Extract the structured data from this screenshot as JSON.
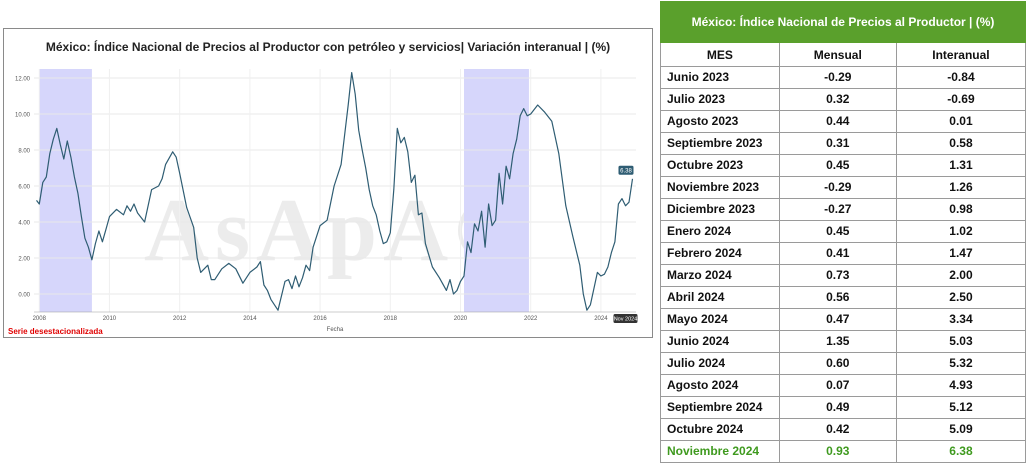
{
  "chart_title": "México: Índice Nacional de Precios al Productor con petróleo y servicios| Variación interanual | (%)",
  "footnote": "Serie desestacionalizada",
  "watermark": "AsApA®",
  "chart_data": {
    "type": "line",
    "title": "México: Índice Nacional de Precios al Productor con petróleo y servicios| Variación interanual | (%)",
    "xlabel": "Fecha",
    "ylabel": "",
    "xlim": [
      2007.85,
      2025.0
    ],
    "ylim": [
      -1.0,
      12.5
    ],
    "yticks": [
      "12.00",
      "10.00",
      "8.00",
      "6.00",
      "4.00",
      "2.00",
      "0.00"
    ],
    "xticks": [
      "2008",
      "2010",
      "2012",
      "2014",
      "2016",
      "2018",
      "2020",
      "2022",
      "2024"
    ],
    "last_value_label": "6.38",
    "last_date_label": "Nov 2024",
    "shaded_ranges": [
      [
        2008.0,
        2009.5
      ],
      [
        2020.1,
        2021.95
      ]
    ],
    "shade_color": "#d6d6fb",
    "line_color": "#2f5d73",
    "grid": true,
    "series": [
      {
        "x": [
          2007.92,
          2008.0,
          2008.1,
          2008.2,
          2008.3,
          2008.4,
          2008.5,
          2008.6,
          2008.7,
          2008.8,
          2008.9,
          2009.0,
          2009.1,
          2009.2,
          2009.3,
          2009.4,
          2009.5,
          2009.6,
          2009.7,
          2009.8,
          2009.9,
          2010.0,
          2010.2,
          2010.4,
          2010.5,
          2010.6,
          2010.7,
          2010.8,
          2011.0,
          2011.2,
          2011.4,
          2011.5,
          2011.6,
          2011.8,
          2011.9,
          2012.0,
          2012.2,
          2012.4,
          2012.5,
          2012.6,
          2012.8,
          2012.9,
          2013.0,
          2013.2,
          2013.4,
          2013.6,
          2013.8,
          2014.0,
          2014.2,
          2014.3,
          2014.4,
          2014.5,
          2014.6,
          2014.8,
          2015.0,
          2015.1,
          2015.2,
          2015.3,
          2015.4,
          2015.5,
          2015.6,
          2015.7,
          2015.8,
          2016.0,
          2016.2,
          2016.4,
          2016.6,
          2016.8,
          2016.9,
          2017.0,
          2017.1,
          2017.2,
          2017.3,
          2017.4,
          2017.5,
          2017.6,
          2017.7,
          2017.8,
          2017.9,
          2018.0,
          2018.1,
          2018.2,
          2018.3,
          2018.4,
          2018.5,
          2018.6,
          2018.7,
          2018.8,
          2018.9,
          2019.0,
          2019.2,
          2019.4,
          2019.6,
          2019.7,
          2019.8,
          2019.9,
          2020.0,
          2020.1,
          2020.2,
          2020.3,
          2020.4,
          2020.5,
          2020.6,
          2020.7,
          2020.8,
          2020.9,
          2021.0,
          2021.1,
          2021.2,
          2021.3,
          2021.4,
          2021.5,
          2021.6,
          2021.7,
          2021.8,
          2021.9,
          2022.0,
          2022.2,
          2022.4,
          2022.6,
          2022.8,
          2023.0,
          2023.2,
          2023.4,
          2023.5,
          2023.6,
          2023.7,
          2023.8,
          2023.9,
          2024.0,
          2024.1,
          2024.2,
          2024.3,
          2024.4,
          2024.5,
          2024.6,
          2024.7,
          2024.8,
          2024.9
        ],
        "values": [
          5.2,
          5.0,
          6.2,
          6.5,
          7.8,
          8.6,
          9.2,
          8.3,
          7.5,
          8.5,
          7.6,
          6.5,
          5.6,
          4.3,
          3.1,
          2.6,
          1.9,
          2.8,
          3.5,
          2.9,
          3.6,
          4.3,
          4.7,
          4.4,
          4.9,
          4.6,
          5.0,
          4.5,
          4.0,
          5.8,
          6.0,
          6.4,
          7.2,
          7.9,
          7.6,
          6.7,
          4.8,
          3.7,
          2.0,
          1.2,
          1.6,
          0.8,
          0.8,
          1.4,
          1.7,
          1.4,
          0.6,
          1.2,
          1.5,
          1.8,
          0.5,
          0.2,
          -0.3,
          -0.9,
          0.7,
          0.8,
          0.3,
          1.0,
          0.4,
          0.9,
          1.6,
          1.3,
          2.6,
          3.8,
          4.1,
          6.0,
          7.2,
          10.5,
          12.3,
          11.1,
          9.1,
          8.0,
          7.0,
          5.8,
          4.9,
          4.4,
          3.5,
          2.8,
          2.9,
          3.4,
          5.8,
          9.2,
          8.4,
          8.7,
          7.9,
          6.2,
          6.6,
          4.4,
          4.5,
          2.8,
          1.5,
          0.9,
          0.2,
          0.8,
          0.0,
          0.2,
          0.7,
          1.0,
          2.9,
          2.3,
          3.9,
          3.5,
          4.6,
          2.6,
          5.0,
          3.8,
          4.1,
          6.7,
          5.0,
          7.1,
          6.4,
          7.8,
          8.6,
          9.9,
          10.3,
          9.9,
          10.0,
          10.5,
          10.1,
          9.6,
          7.8,
          4.9,
          3.2,
          1.6,
          0.0,
          -0.9,
          -0.6,
          0.3,
          1.2,
          1.0,
          1.1,
          1.5,
          2.3,
          2.9,
          5.0,
          5.3,
          4.9,
          5.1,
          6.4
        ]
      }
    ]
  },
  "table": {
    "title": "México: Índice Nacional de Precios al Productor | (%)",
    "headers": [
      "MES",
      "Mensual",
      "Interanual"
    ],
    "rows": [
      [
        "Junio 2023",
        "-0.29",
        "-0.84"
      ],
      [
        "Julio 2023",
        "0.32",
        "-0.69"
      ],
      [
        "Agosto 2023",
        "0.44",
        "0.01"
      ],
      [
        "Septiembre 2023",
        "0.31",
        "0.58"
      ],
      [
        "Octubre 2023",
        "0.45",
        "1.31"
      ],
      [
        "Noviembre 2023",
        "-0.29",
        "1.26"
      ],
      [
        "Diciembre 2023",
        "-0.27",
        "0.98"
      ],
      [
        "Enero 2024",
        "0.45",
        "1.02"
      ],
      [
        "Febrero 2024",
        "0.41",
        "1.47"
      ],
      [
        "Marzo 2024",
        "0.73",
        "2.00"
      ],
      [
        "Abril 2024",
        "0.56",
        "2.50"
      ],
      [
        "Mayo 2024",
        "0.47",
        "3.34"
      ],
      [
        "Junio 2024",
        "1.35",
        "5.03"
      ],
      [
        "Julio 2024",
        "0.60",
        "5.32"
      ],
      [
        "Agosto 2024",
        "0.07",
        "4.93"
      ],
      [
        "Septiembre 2024",
        "0.49",
        "5.12"
      ],
      [
        "Octubre 2024",
        "0.42",
        "5.09"
      ],
      [
        "Noviembre 2024",
        "0.93",
        "6.38"
      ]
    ]
  }
}
